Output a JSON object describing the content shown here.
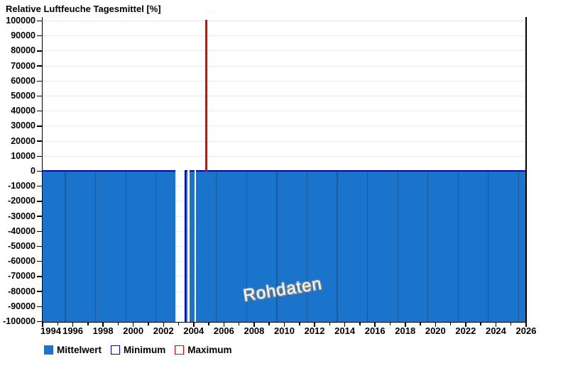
{
  "title": "Relative Luftfeuche Tagesmittel [%]",
  "watermark": "Rohdaten",
  "legend": [
    {
      "label": "Mittelwert",
      "swatch_fill": "#1B74CC",
      "swatch_border": "#1B74CC"
    },
    {
      "label": "Minimum",
      "swatch_fill": "#FFFFFF",
      "swatch_border": "#0000CC"
    },
    {
      "label": "Maximum",
      "swatch_fill": "#FFFFFF",
      "swatch_border": "#EE0000"
    }
  ],
  "chart_data": {
    "type": "area",
    "title": "Relative Luftfeuche Tagesmittel [%]",
    "xlabel": "",
    "ylabel": "",
    "x_range": [
      1994,
      2026
    ],
    "y_range": [
      -100000,
      100000
    ],
    "x_tick_labels": [
      1994,
      1996,
      1998,
      2000,
      2002,
      2004,
      2006,
      2008,
      2010,
      2012,
      2014,
      2016,
      2018,
      2020,
      2022,
      2024,
      2026
    ],
    "x_minor_tick_step": 1,
    "y_ticks": [
      100000,
      90000,
      80000,
      70000,
      60000,
      50000,
      40000,
      30000,
      20000,
      10000,
      0,
      -10000,
      -20000,
      -30000,
      -40000,
      -50000,
      -60000,
      -70000,
      -80000,
      -90000,
      -100000
    ],
    "grid": "horizontal",
    "legend_position": "bottom-left",
    "watermark": "Rohdaten",
    "series": [
      {
        "name": "Mittelwert",
        "type": "area",
        "fill_color": "#1B74CC",
        "edge_color": "#0000BB",
        "value": -100000,
        "segments": [
          [
            1994.0,
            2002.8
          ],
          [
            2003.4,
            2003.6
          ],
          [
            2003.71,
            2004.07
          ],
          [
            2004.17,
            2026.0
          ]
        ],
        "bar_boundaries": [
          1995.5,
          1997.5,
          1999.5,
          2001.5,
          2005.5,
          2007.5,
          2009.5,
          2011.5,
          2013.5,
          2015.5,
          2017.5,
          2019.5,
          2021.5,
          2023.5,
          2025.5
        ]
      },
      {
        "name": "Minimum",
        "type": "bar",
        "color": "#0000BB",
        "x": 2003.45,
        "y_from": 0,
        "y_to": -100000
      },
      {
        "name": "Maximum",
        "type": "bar",
        "color": "#EE0000",
        "x": 2004.81,
        "y_from": 0,
        "y_to": 100000
      }
    ],
    "colors": {
      "grid": "#E9E9E9",
      "axis": "#000000",
      "bar_separator": "#1A5A9E",
      "background": "#FFFFFF"
    }
  }
}
